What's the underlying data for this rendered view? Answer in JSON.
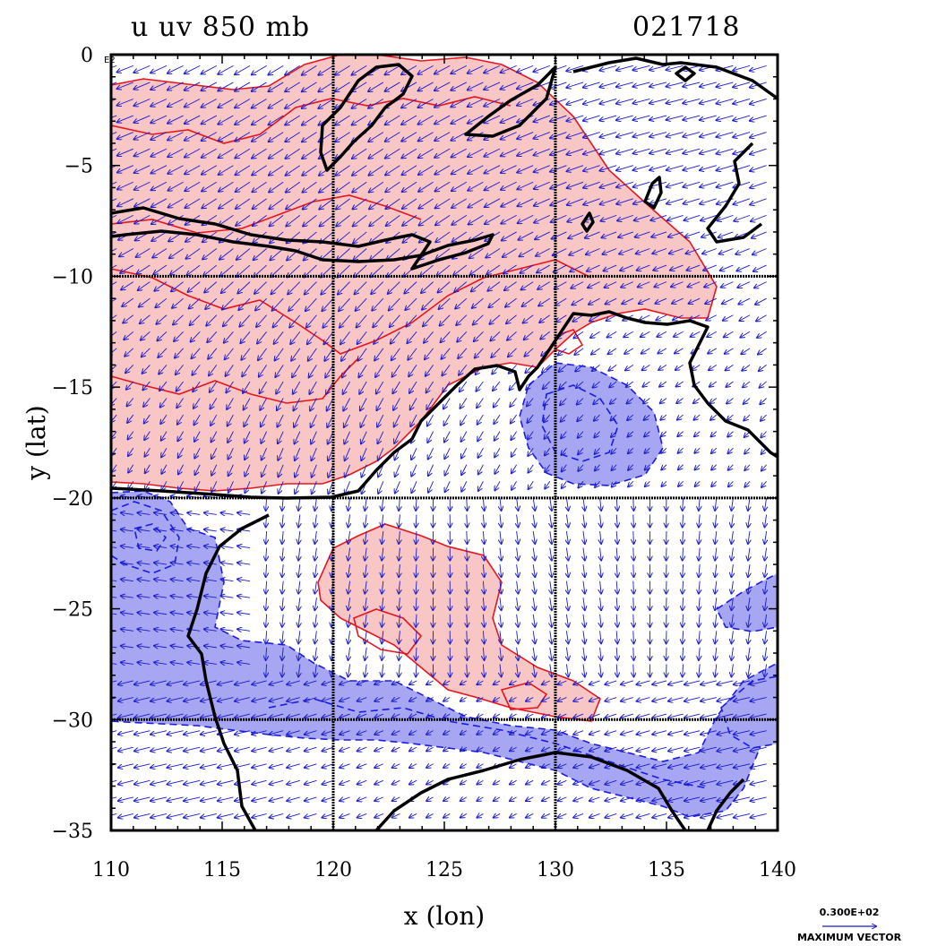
{
  "title_left": "u uv 850 mb",
  "title_right": "021718",
  "corner_tag": "E2",
  "x_label": "x (lon)",
  "y_label": "y (lat)",
  "x_ticks": [
    "110",
    "115",
    "120",
    "125",
    "130",
    "135",
    "140"
  ],
  "y_ticks": [
    "0",
    "−5",
    "−10",
    "−15",
    "−20",
    "−25",
    "−30",
    "−35"
  ],
  "vector_scale_value": "0.300E+02",
  "vector_scale_caption": "MAXIMUM VECTOR",
  "colors": {
    "positive_fill": "#f9c6c6",
    "positive_line": "#e8141d",
    "negative_fill": "#a6a6f2",
    "negative_line": "#1a1ae6",
    "vector": "#1a1acc",
    "coast": "#000000",
    "grid": "#000000"
  },
  "chart_data": {
    "type": "map",
    "projection": "lat-lon",
    "xlim": [
      110,
      140
    ],
    "ylim": [
      -35,
      0
    ],
    "x_ticks": [
      110,
      115,
      120,
      125,
      130,
      135,
      140
    ],
    "y_ticks": [
      0,
      -5,
      -10,
      -15,
      -20,
      -25,
      -30,
      -35
    ],
    "gridlines_lon": [
      120,
      130
    ],
    "gridlines_lat": [
      -10,
      -20,
      -30
    ],
    "field": "u wind, 850 mb",
    "shading": {
      "positive": "easterly/westerly u > 0 (red)",
      "negative": "u < 0 (blue, dashed contours)"
    }
  }
}
